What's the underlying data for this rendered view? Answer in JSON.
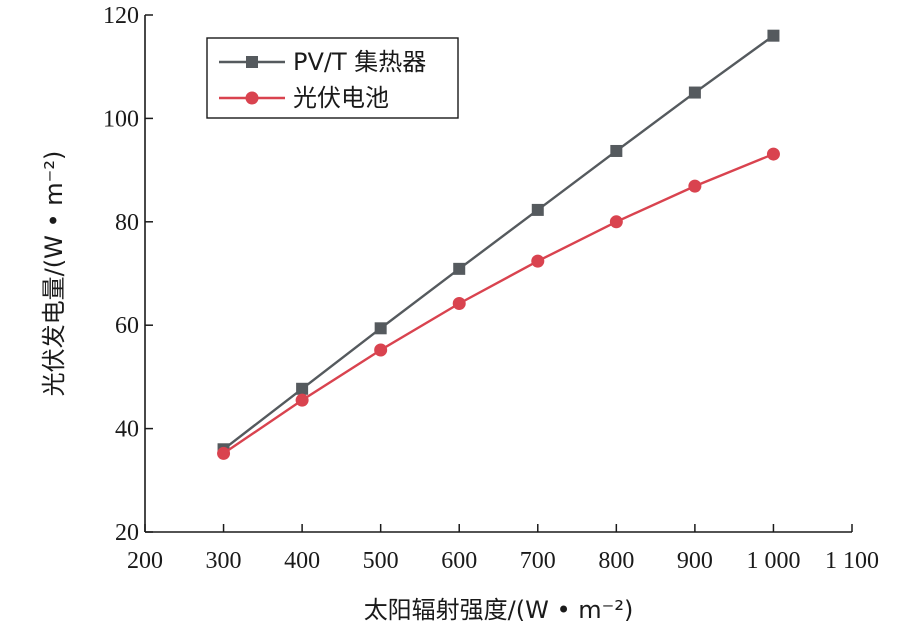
{
  "chart_data": {
    "type": "line",
    "x": [
      300,
      400,
      500,
      600,
      700,
      800,
      900,
      1000
    ],
    "series": [
      {
        "name": "PV/T 集热器",
        "values": [
          36.0,
          47.7,
          59.4,
          70.9,
          82.3,
          93.7,
          105.0,
          116.0
        ],
        "color": "#555a5e",
        "marker": "square"
      },
      {
        "name": "光伏电池",
        "values": [
          35.2,
          45.5,
          55.2,
          64.2,
          72.4,
          80.0,
          86.9,
          93.1
        ],
        "color": "#d9434f",
        "marker": "circle"
      }
    ],
    "xlabel": "太阳辐射强度/(W • m⁻²)",
    "ylabel": "光伏发电量/(W • m⁻²)",
    "xlim": [
      200,
      1100
    ],
    "ylim": [
      20,
      120
    ],
    "xticks": [
      200,
      300,
      400,
      500,
      600,
      700,
      800,
      900,
      1000,
      1100
    ],
    "xtick_labels": [
      "200",
      "300",
      "400",
      "500",
      "600",
      "700",
      "800",
      "900",
      "1 000",
      "1 100"
    ],
    "yticks": [
      20,
      40,
      60,
      80,
      100,
      120
    ],
    "ytick_labels": [
      "20",
      "40",
      "60",
      "80",
      "100",
      "120"
    ],
    "grid": false,
    "legend_position": "top-left"
  }
}
